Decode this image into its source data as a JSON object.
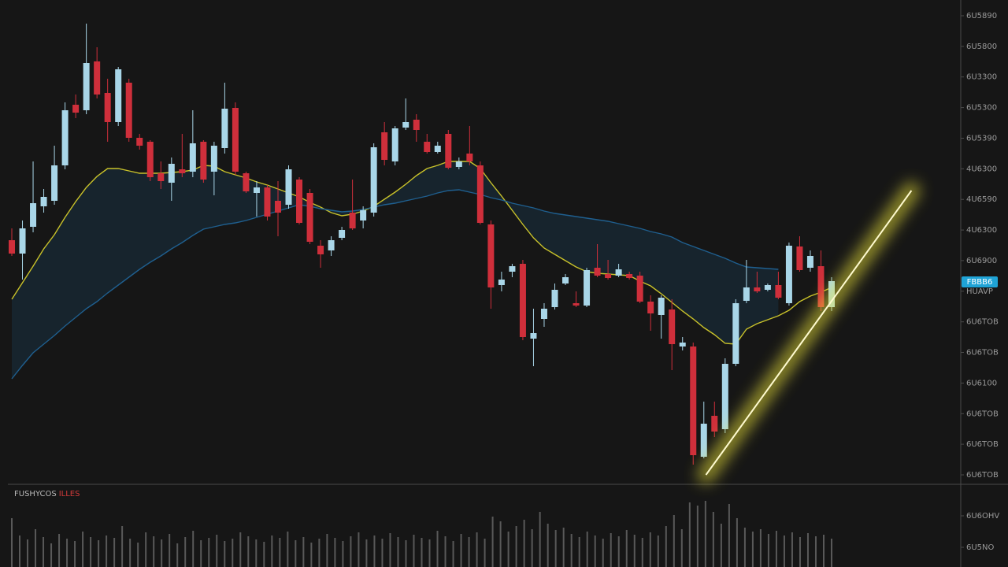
{
  "chart_data": [
    {
      "type": "candlestick",
      "categories": [
        null,
        null,
        null,
        null,
        null,
        null,
        null,
        null,
        null,
        null,
        null,
        null,
        null,
        null,
        null,
        null,
        null,
        null,
        null,
        null,
        null,
        null,
        null,
        null,
        null,
        null,
        null,
        null,
        null,
        null,
        null,
        null,
        null,
        null,
        null,
        null,
        null,
        null,
        null,
        null,
        null,
        null,
        null,
        null,
        null,
        null,
        null,
        null,
        null,
        null,
        null,
        null,
        null,
        null,
        null,
        null,
        null,
        null,
        null,
        null,
        null,
        null,
        null,
        null,
        null,
        null,
        null,
        null,
        null,
        null,
        null,
        null,
        null,
        null,
        null,
        null,
        null,
        null
      ],
      "open": [
        298,
        281,
        315,
        341,
        348,
        393,
        470,
        463,
        525,
        485,
        448,
        498,
        428,
        423,
        383,
        371,
        388,
        385,
        423,
        385,
        415,
        466,
        383,
        358,
        365,
        348,
        343,
        375,
        358,
        291,
        285,
        301,
        333,
        323,
        333,
        435,
        398,
        441,
        451,
        423,
        410,
        433,
        391,
        408,
        393,
        318,
        241,
        258,
        268,
        173,
        198,
        213,
        243,
        218,
        215,
        263,
        255,
        253,
        255,
        253,
        220,
        203,
        210,
        163,
        163,
        23,
        75,
        58,
        141,
        221,
        238,
        235,
        241,
        218,
        290,
        263,
        265,
        213
      ],
      "high": [
        313,
        323,
        398,
        363,
        418,
        473,
        483,
        573,
        543,
        503,
        518,
        503,
        433,
        425,
        398,
        403,
        433,
        463,
        425,
        423,
        498,
        473,
        385,
        373,
        368,
        373,
        393,
        378,
        363,
        298,
        303,
        315,
        375,
        341,
        421,
        448,
        443,
        478,
        458,
        433,
        423,
        438,
        403,
        443,
        398,
        323,
        258,
        268,
        273,
        211,
        218,
        243,
        255,
        233,
        263,
        293,
        273,
        268,
        258,
        258,
        228,
        228,
        223,
        175,
        168,
        93,
        93,
        148,
        223,
        273,
        258,
        243,
        258,
        295,
        303,
        285,
        285,
        251
      ],
      "low": [
        278,
        248,
        308,
        333,
        343,
        388,
        453,
        458,
        478,
        423,
        443,
        423,
        413,
        373,
        363,
        348,
        378,
        378,
        371,
        355,
        408,
        381,
        358,
        328,
        323,
        303,
        338,
        318,
        293,
        263,
        278,
        298,
        311,
        313,
        328,
        393,
        393,
        438,
        423,
        408,
        408,
        388,
        388,
        393,
        318,
        211,
        233,
        251,
        171,
        138,
        188,
        210,
        241,
        213,
        213,
        251,
        248,
        251,
        248,
        218,
        183,
        173,
        133,
        158,
        13,
        21,
        48,
        53,
        138,
        218,
        231,
        233,
        223,
        215,
        258,
        258,
        208,
        208
      ],
      "close": [
        281,
        313,
        345,
        353,
        393,
        463,
        460,
        523,
        483,
        448,
        515,
        428,
        418,
        378,
        373,
        395,
        383,
        421,
        375,
        418,
        465,
        385,
        360,
        365,
        328,
        333,
        388,
        320,
        296,
        280,
        298,
        311,
        313,
        336,
        416,
        400,
        440,
        448,
        438,
        410,
        418,
        390,
        398,
        398,
        320,
        238,
        248,
        265,
        175,
        180,
        211,
        235,
        251,
        215,
        260,
        253,
        250,
        261,
        250,
        220,
        205,
        225,
        166,
        168,
        25,
        65,
        55,
        141,
        218,
        238,
        233,
        241,
        225,
        291,
        260,
        278,
        213,
        246
      ],
      "up_color": "#a9d6e8",
      "down_color": "#cf2f3b",
      "series": [
        {
          "color": "#c9c22a",
          "values": [
            223,
            244,
            265,
            287,
            305,
            327,
            347,
            365,
            379,
            389,
            389,
            386,
            383,
            383,
            383,
            384,
            385,
            387,
            393,
            392,
            385,
            381,
            377,
            372,
            368,
            363,
            358,
            353,
            346,
            340,
            333,
            329,
            331,
            335,
            341,
            350,
            359,
            369,
            380,
            389,
            393,
            398,
            398,
            398,
            389,
            371,
            354,
            336,
            318,
            301,
            288,
            280,
            272,
            264,
            258,
            256,
            255,
            254,
            253,
            246,
            240,
            230,
            219,
            208,
            198,
            187,
            178,
            167,
            166,
            185,
            192,
            197,
            202,
            209,
            220,
            227,
            232,
            238
          ]
        },
        {
          "color": "#1f5f8f",
          "values": [
            122,
            139,
            155,
            166,
            177,
            189,
            200,
            211,
            220,
            231,
            241,
            251,
            261,
            270,
            278,
            287,
            295,
            304,
            312,
            315,
            318,
            320,
            323,
            327,
            331,
            335,
            339,
            343,
            341,
            338,
            336,
            334,
            335,
            337,
            340,
            343,
            345,
            348,
            351,
            354,
            358,
            361,
            362,
            359,
            356,
            352,
            349,
            345,
            342,
            339,
            335,
            332,
            330,
            328,
            326,
            324,
            322,
            319,
            316,
            313,
            309,
            306,
            302,
            295,
            290,
            285,
            280,
            275,
            269,
            264,
            263,
            262,
            261,
            null,
            null,
            null,
            null,
            null
          ]
        }
      ],
      "ylim": [
        -12,
        603
      ],
      "yticks": [
        {
          "value": 0,
          "label": "6U6TOB"
        },
        {
          "value": 38.9,
          "label": "6U6TOB"
        },
        {
          "value": 77.7,
          "label": "6U6TOB"
        },
        {
          "value": 116.6,
          "label": "6U6100"
        },
        {
          "value": 155.5,
          "label": "6U6TOB"
        },
        {
          "value": 194.3,
          "label": "6U6TOB"
        },
        {
          "value": 233.2,
          "label": "HUAVP"
        },
        {
          "value": 272.1,
          "label": "6U6900"
        },
        {
          "value": 310.9,
          "label": "4U6300"
        },
        {
          "value": 349.8,
          "label": "4U6590"
        },
        {
          "value": 388.7,
          "label": "4U6300"
        },
        {
          "value": 427.5,
          "label": "6U5390"
        },
        {
          "value": 466.4,
          "label": "6U5300"
        },
        {
          "value": 505.3,
          "label": "6U3300"
        },
        {
          "value": 544.1,
          "label": "6U5800"
        },
        {
          "value": 583,
          "label": "6U5890"
        }
      ],
      "last_price": {
        "value": 245,
        "label": "FBBB6",
        "color": "#1fa3d6"
      },
      "trendline": {
        "x": [
          65.2,
          84.5
        ],
        "values": [
          0,
          361
        ],
        "color": "#f2ea3a"
      }
    },
    {
      "type": "bar",
      "title_parts": [
        "FUSHYCOS",
        "ILLES"
      ],
      "categories": [
        null,
        null,
        null,
        null,
        null,
        null,
        null,
        null,
        null,
        null,
        null,
        null,
        null,
        null,
        null,
        null,
        null,
        null,
        null,
        null,
        null,
        null,
        null,
        null,
        null,
        null,
        null,
        null,
        null,
        null,
        null,
        null,
        null,
        null,
        null,
        null,
        null,
        null,
        null,
        null,
        null,
        null,
        null,
        null,
        null,
        null,
        null,
        null,
        null,
        null,
        null,
        null,
        null,
        null,
        null,
        null,
        null,
        null,
        null,
        null,
        null,
        null,
        null,
        null,
        null,
        null,
        null,
        null,
        null,
        null,
        null,
        null,
        null,
        null,
        null,
        null,
        null,
        null,
        null,
        null,
        null,
        null,
        null,
        null,
        null,
        null,
        null,
        null,
        null,
        null,
        null,
        null,
        null,
        null,
        null,
        null,
        null,
        null,
        null,
        null,
        null,
        null,
        null,
        null,
        null
      ],
      "values": [
        62,
        40,
        35,
        48,
        38,
        30,
        42,
        36,
        33,
        45,
        38,
        34,
        40,
        37,
        52,
        36,
        31,
        44,
        39,
        35,
        42,
        30,
        38,
        46,
        34,
        37,
        41,
        33,
        36,
        44,
        39,
        35,
        32,
        40,
        37,
        45,
        34,
        38,
        31,
        36,
        42,
        37,
        33,
        39,
        44,
        35,
        40,
        36,
        43,
        38,
        34,
        41,
        37,
        35,
        46,
        39,
        33,
        42,
        38,
        44,
        36,
        64,
        58,
        45,
        52,
        60,
        48,
        70,
        55,
        47,
        50,
        42,
        38,
        45,
        40,
        36,
        43,
        39,
        47,
        41,
        37,
        44,
        40,
        52,
        66,
        48,
        82,
        78,
        84,
        70,
        55,
        80,
        62,
        50,
        45,
        48,
        42,
        46,
        40,
        44,
        38,
        43,
        39,
        41,
        36
      ],
      "color": "#595959",
      "ylim": [
        0,
        105
      ],
      "yticks": [
        {
          "value": 25,
          "label": "6U5NO"
        },
        {
          "value": 65,
          "label": "6U6OHV"
        }
      ]
    }
  ]
}
